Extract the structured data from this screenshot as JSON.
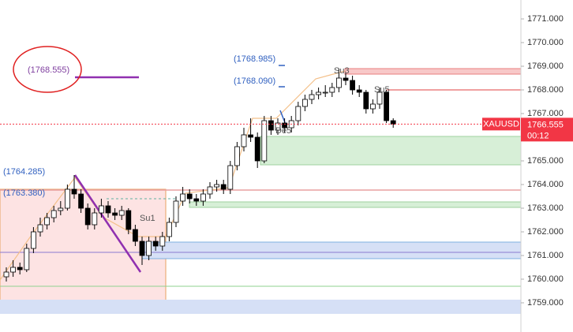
{
  "chart_data": {
    "type": "candlestick",
    "symbol": "XAUUSD",
    "countdown": "00:12",
    "last_price": 1766.555,
    "up_color": "#ffffff",
    "down_color": "#000000",
    "last_price_color": "#f23645",
    "open": [
      1760.1,
      1760.3,
      1760.5,
      1760.4,
      1761.3,
      1762.0,
      1762.3,
      1762.6,
      1762.9,
      1763.0,
      1763.8,
      1763.6,
      1763.0,
      1762.3,
      1762.8,
      1763.1,
      1762.8,
      1762.7,
      1762.9,
      1762.1,
      1761.6,
      1761.0,
      1761.6,
      1761.4,
      1761.8,
      1762.4,
      1763.3,
      1763.6,
      1763.4,
      1763.3,
      1763.6,
      1763.9,
      1764.0,
      1763.8,
      1764.8,
      1765.6,
      1766.1,
      1766.0,
      1765.0,
      1766.7,
      1766.3,
      1766.6,
      1766.4,
      1766.7,
      1767.3,
      1767.6,
      1767.8,
      1767.9,
      1767.9,
      1768.1,
      1768.5,
      1768.4,
      1768.0,
      1767.9,
      1767.2,
      1767.4,
      1767.9,
      1766.7
    ],
    "high": [
      1760.5,
      1760.8,
      1760.7,
      1761.5,
      1762.2,
      1762.6,
      1762.8,
      1763.1,
      1763.3,
      1764.0,
      1764.4,
      1763.8,
      1763.2,
      1763.0,
      1763.4,
      1763.3,
      1763.0,
      1763.1,
      1763.0,
      1762.3,
      1761.8,
      1761.8,
      1761.8,
      1762.0,
      1762.6,
      1763.5,
      1763.9,
      1763.8,
      1763.6,
      1763.8,
      1764.1,
      1764.2,
      1764.2,
      1765.0,
      1765.8,
      1766.4,
      1766.8,
      1766.2,
      1766.9,
      1766.9,
      1766.8,
      1766.8,
      1766.9,
      1767.5,
      1767.8,
      1768.0,
      1768.1,
      1768.2,
      1768.3,
      1768.9,
      1768.7,
      1768.6,
      1768.2,
      1768.0,
      1767.6,
      1768.1,
      1768.0,
      1766.8
    ],
    "low": [
      1759.9,
      1760.1,
      1760.2,
      1760.3,
      1761.1,
      1761.8,
      1762.1,
      1762.4,
      1762.7,
      1762.9,
      1763.4,
      1762.8,
      1762.1,
      1762.1,
      1762.6,
      1762.6,
      1762.5,
      1762.5,
      1761.9,
      1761.4,
      1760.6,
      1760.8,
      1761.2,
      1761.2,
      1761.6,
      1762.2,
      1763.1,
      1763.2,
      1763.1,
      1763.1,
      1763.4,
      1763.7,
      1763.6,
      1763.6,
      1764.6,
      1765.4,
      1765.8,
      1764.7,
      1764.9,
      1766.1,
      1766.1,
      1766.2,
      1766.2,
      1766.5,
      1767.1,
      1767.4,
      1767.6,
      1767.7,
      1767.7,
      1767.9,
      1768.2,
      1767.8,
      1767.7,
      1767.0,
      1767.0,
      1767.2,
      1766.6,
      1766.4
    ],
    "close": [
      1760.3,
      1760.5,
      1760.4,
      1761.3,
      1762.0,
      1762.3,
      1762.6,
      1762.9,
      1763.0,
      1763.8,
      1763.6,
      1763.0,
      1762.3,
      1762.8,
      1763.1,
      1762.8,
      1762.7,
      1762.9,
      1762.1,
      1761.6,
      1761.0,
      1761.6,
      1761.4,
      1761.8,
      1762.4,
      1763.3,
      1763.6,
      1763.4,
      1763.3,
      1763.6,
      1763.9,
      1764.0,
      1763.8,
      1764.8,
      1765.6,
      1766.1,
      1766.0,
      1765.0,
      1766.7,
      1766.3,
      1766.6,
      1766.4,
      1766.7,
      1767.3,
      1767.6,
      1767.8,
      1767.9,
      1767.9,
      1768.1,
      1768.5,
      1768.4,
      1768.0,
      1767.9,
      1767.2,
      1767.4,
      1767.9,
      1766.7,
      1766.55
    ],
    "ylim": [
      1757.8,
      1771.8
    ],
    "yticks": [
      {
        "value": 1759,
        "label": "1759.000"
      },
      {
        "value": 1760,
        "label": "1760.000"
      },
      {
        "value": 1761,
        "label": "1761.000"
      },
      {
        "value": 1762,
        "label": "1762.000"
      },
      {
        "value": 1763,
        "label": "1763.000"
      },
      {
        "value": 1764,
        "label": "1764.000"
      },
      {
        "value": 1765,
        "label": "1765.000"
      },
      {
        "value": 1766,
        "label": "1766.000"
      },
      {
        "value": 1767,
        "label": "1767.000"
      },
      {
        "value": 1768,
        "label": "1768.000"
      },
      {
        "value": 1769,
        "label": "1769.000"
      },
      {
        "value": 1770,
        "label": "1770.000"
      },
      {
        "value": 1771,
        "label": "1771.000"
      }
    ],
    "annotations": [
      "(1768.555)",
      "(1768.985)",
      "(1768.090)",
      "(1764.285)",
      "(1763.380)",
      "Su1",
      "Su3",
      "Su5",
      "De5"
    ]
  }
}
